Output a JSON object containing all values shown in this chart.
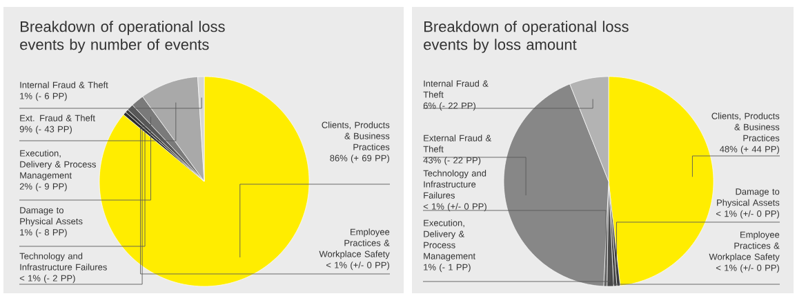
{
  "chart_data": [
    {
      "type": "pie",
      "title": "Breakdown of operational loss events by number of events",
      "categories": [
        "Clients, Products & Business Practices",
        "Employee Practices & Workplace Safety",
        "Technology and Infrastructure Failures",
        "Damage to Physical Assets",
        "Execution, Delivery & Process Management",
        "Ext. Fraud & Theft",
        "Internal Fraud & Theft"
      ],
      "values": [
        86,
        0.5,
        0.5,
        1,
        2,
        9,
        1
      ],
      "value_labels": [
        "86% (+ 69 PP)",
        "< 1% (+/- 0 PP)",
        "< 1% (- 2 PP)",
        "1% (- 8 PP)",
        "2% (- 9 PP)",
        "9% (- 43 PP)",
        "1% (- 6 PP)"
      ],
      "colors": [
        "#ffed00",
        "#2e2e2e",
        "#3c3c3c",
        "#575757",
        "#7a7a7a",
        "#a9a9a9",
        "#d6d6d6"
      ]
    },
    {
      "type": "pie",
      "title": "Breakdown of operational loss events by loss amount",
      "categories": [
        "Clients, Products & Business Practices",
        "Damage to Physical Assets",
        "Employee Practices & Workplace Safety",
        "Execution, Delivery & Process Management",
        "Technology and Infrastructure Failures",
        "External Fraud & Theft",
        "Internal Fraud & Theft"
      ],
      "values": [
        48,
        0.5,
        0.5,
        1,
        0.5,
        43,
        6
      ],
      "value_labels": [
        "48% (+ 44 PP)",
        "< 1% (+/- 0 PP)",
        "< 1% (+/- 0 PP)",
        "1% (- 1 PP)",
        "< 1% (+/- 0 PP)",
        "43% (- 22 PP)",
        "6% (- 22 PP)"
      ],
      "colors": [
        "#ffed00",
        "#3a3a3a",
        "#444444",
        "#4a4a4a",
        "#666666",
        "#878787",
        "#b3b3b3"
      ]
    }
  ]
}
